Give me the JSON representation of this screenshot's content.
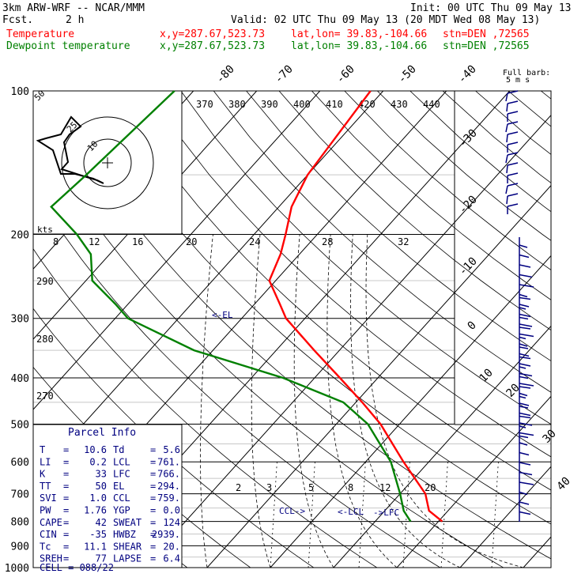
{
  "header": {
    "model": "3km ARW-WRF -- NCAR/MMM",
    "init": "Init: 00 UTC Thu 09 May 13",
    "fcst_label": "Fcst.",
    "fcst_value": "2 h",
    "valid": "Valid: 02 UTC Thu 09 May 13 (20 MDT Wed 08 May 13)",
    "temp_label": "Temperature",
    "dew_label": "Dewpoint temperature",
    "xy": "x,y=287.67,523.73",
    "latlon": "lat,lon= 39.83,-104.66",
    "stn": "stn=DEN ,72565",
    "temp_color": "#ff0000",
    "dew_color": "#008000"
  },
  "chart_data": {
    "type": "line",
    "title": "",
    "ylabel_ticks": [
      100,
      200,
      300,
      400,
      500,
      600,
      700,
      800,
      900,
      1000
    ],
    "pressure_axis": "log",
    "ylim": [
      100,
      1000
    ],
    "isotherm_labels": [
      -80,
      -70,
      -60,
      -50,
      -40,
      -30,
      -20,
      -10,
      0,
      10,
      20,
      30,
      40
    ],
    "theta_labels": [
      370,
      380,
      390,
      400,
      410,
      420,
      430,
      440
    ],
    "theta_left_labels": [
      290,
      280,
      270
    ],
    "mixing_ratio_labels": [
      2,
      3,
      5,
      8,
      12,
      20
    ],
    "series": [
      {
        "name": "Temperature",
        "x_pixels_note": "",
        "points": [
          {
            "p": 100,
            "t": -62
          },
          {
            "p": 150,
            "t": -60
          },
          {
            "p": 175,
            "t": -58
          },
          {
            "p": 200,
            "t": -55
          },
          {
            "p": 220,
            "t": -53
          },
          {
            "p": 250,
            "t": -51
          },
          {
            "p": 280,
            "t": -46
          },
          {
            "p": 300,
            "t": -43
          },
          {
            "p": 350,
            "t": -34
          },
          {
            "p": 400,
            "t": -26
          },
          {
            "p": 450,
            "t": -19
          },
          {
            "p": 500,
            "t": -13
          },
          {
            "p": 600,
            "t": -4
          },
          {
            "p": 700,
            "t": 4
          },
          {
            "p": 760,
            "t": 7
          },
          {
            "p": 800,
            "t": 10.6
          }
        ]
      },
      {
        "name": "Dewpoint temperature",
        "points": [
          {
            "p": 100,
            "t": -93
          },
          {
            "p": 150,
            "t": -95
          },
          {
            "p": 175,
            "t": -96
          },
          {
            "p": 200,
            "t": -88
          },
          {
            "p": 220,
            "t": -83
          },
          {
            "p": 250,
            "t": -79
          },
          {
            "p": 280,
            "t": -72
          },
          {
            "p": 300,
            "t": -68
          },
          {
            "p": 350,
            "t": -53
          },
          {
            "p": 400,
            "t": -35
          },
          {
            "p": 450,
            "t": -22
          },
          {
            "p": 500,
            "t": -15
          },
          {
            "p": 600,
            "t": -6
          },
          {
            "p": 700,
            "t": 0
          },
          {
            "p": 760,
            "t": 3
          },
          {
            "p": 800,
            "t": 5.6
          }
        ]
      }
    ],
    "annotations": [
      "<-EL",
      "CCL->",
      "<-LCL",
      "->LFC"
    ],
    "wind_profile_label": "Full barb: 5 m s",
    "hodograph_labels": [
      "50",
      "25",
      "10"
    ],
    "hodograph_kts_label": "kts",
    "hodograph_speed_ticks": [
      8,
      12,
      16,
      20,
      24,
      28,
      32
    ]
  },
  "parcel": {
    "title": "Parcel Info",
    "rows": [
      {
        "l1": "T",
        "v1": "10.6",
        "l2": "Td",
        "v2": "5.6"
      },
      {
        "l1": "LI",
        "v1": "0.2",
        "l2": "LCL",
        "v2": "761."
      },
      {
        "l1": "K",
        "v1": "33",
        "l2": "LFC",
        "v2": "766."
      },
      {
        "l1": "TT",
        "v1": "50",
        "l2": "EL",
        "v2": "294."
      },
      {
        "l1": "SVI",
        "v1": "1.0",
        "l2": "CCL",
        "v2": "759."
      },
      {
        "l1": "PW",
        "v1": "1.76",
        "l2": "YGP",
        "v2": "0.0"
      },
      {
        "l1": "CAPE",
        "v1": "42",
        "l2": "SWEAT",
        "v2": "124"
      },
      {
        "l1": "CIN",
        "v1": "-35",
        "l2": "HWBZ",
        "v2": "2939."
      },
      {
        "l1": "Tc",
        "v1": "11.1",
        "l2": "SHEAR",
        "v2": "20."
      },
      {
        "l1": "SREH",
        "v1": "77",
        "l2": "LAPSE",
        "v2": "6.4"
      }
    ],
    "cell": "CELL = 088/22"
  }
}
